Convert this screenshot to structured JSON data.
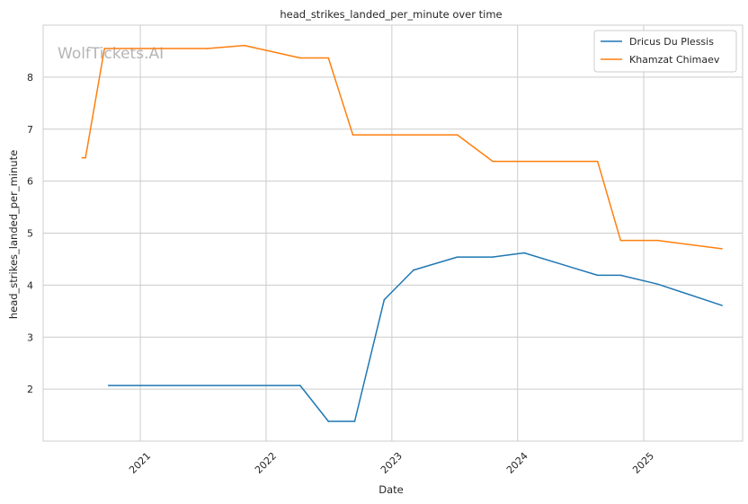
{
  "chart_data": {
    "type": "line",
    "title": "head_strikes_landed_per_minute over time",
    "xlabel": "Date",
    "ylabel": "head_strikes_landed_per_minute",
    "x_ticks": [
      "2021",
      "2022",
      "2023",
      "2024",
      "2025"
    ],
    "y_ticks": [
      2,
      3,
      4,
      5,
      6,
      7,
      8
    ],
    "xlim": [
      "2020-03-25",
      "2025-10-15"
    ],
    "ylim": [
      1.0,
      9.0
    ],
    "grid": true,
    "legend_position": "top-right",
    "watermark": "WolfTickets.AI",
    "series": [
      {
        "name": "Dricus Du Plessis",
        "color": "#1f77b4",
        "points": [
          {
            "date": "2020-10-01",
            "y": 2.07
          },
          {
            "date": "2022-04-10",
            "y": 2.07
          },
          {
            "date": "2022-07-01",
            "y": 1.38
          },
          {
            "date": "2022-09-15",
            "y": 1.38
          },
          {
            "date": "2022-12-10",
            "y": 3.72
          },
          {
            "date": "2023-03-05",
            "y": 4.29
          },
          {
            "date": "2023-07-10",
            "y": 4.54
          },
          {
            "date": "2023-10-20",
            "y": 4.54
          },
          {
            "date": "2024-01-20",
            "y": 4.62
          },
          {
            "date": "2024-08-20",
            "y": 4.19
          },
          {
            "date": "2024-10-26",
            "y": 4.19
          },
          {
            "date": "2025-02-10",
            "y": 4.02
          },
          {
            "date": "2025-08-16",
            "y": 3.61
          }
        ]
      },
      {
        "name": "Khamzat Chimaev",
        "color": "#ff7f0e",
        "points": [
          {
            "date": "2020-07-16",
            "y": 6.45
          },
          {
            "date": "2020-07-26",
            "y": 6.45
          },
          {
            "date": "2020-09-19",
            "y": 8.55
          },
          {
            "date": "2021-07-15",
            "y": 8.55
          },
          {
            "date": "2021-10-30",
            "y": 8.61
          },
          {
            "date": "2022-04-10",
            "y": 8.37
          },
          {
            "date": "2022-07-01",
            "y": 8.37
          },
          {
            "date": "2022-09-10",
            "y": 6.89
          },
          {
            "date": "2023-07-10",
            "y": 6.89
          },
          {
            "date": "2023-10-21",
            "y": 6.38
          },
          {
            "date": "2024-08-20",
            "y": 6.38
          },
          {
            "date": "2024-10-26",
            "y": 4.86
          },
          {
            "date": "2025-02-10",
            "y": 4.86
          },
          {
            "date": "2025-08-16",
            "y": 4.7
          }
        ]
      }
    ]
  }
}
